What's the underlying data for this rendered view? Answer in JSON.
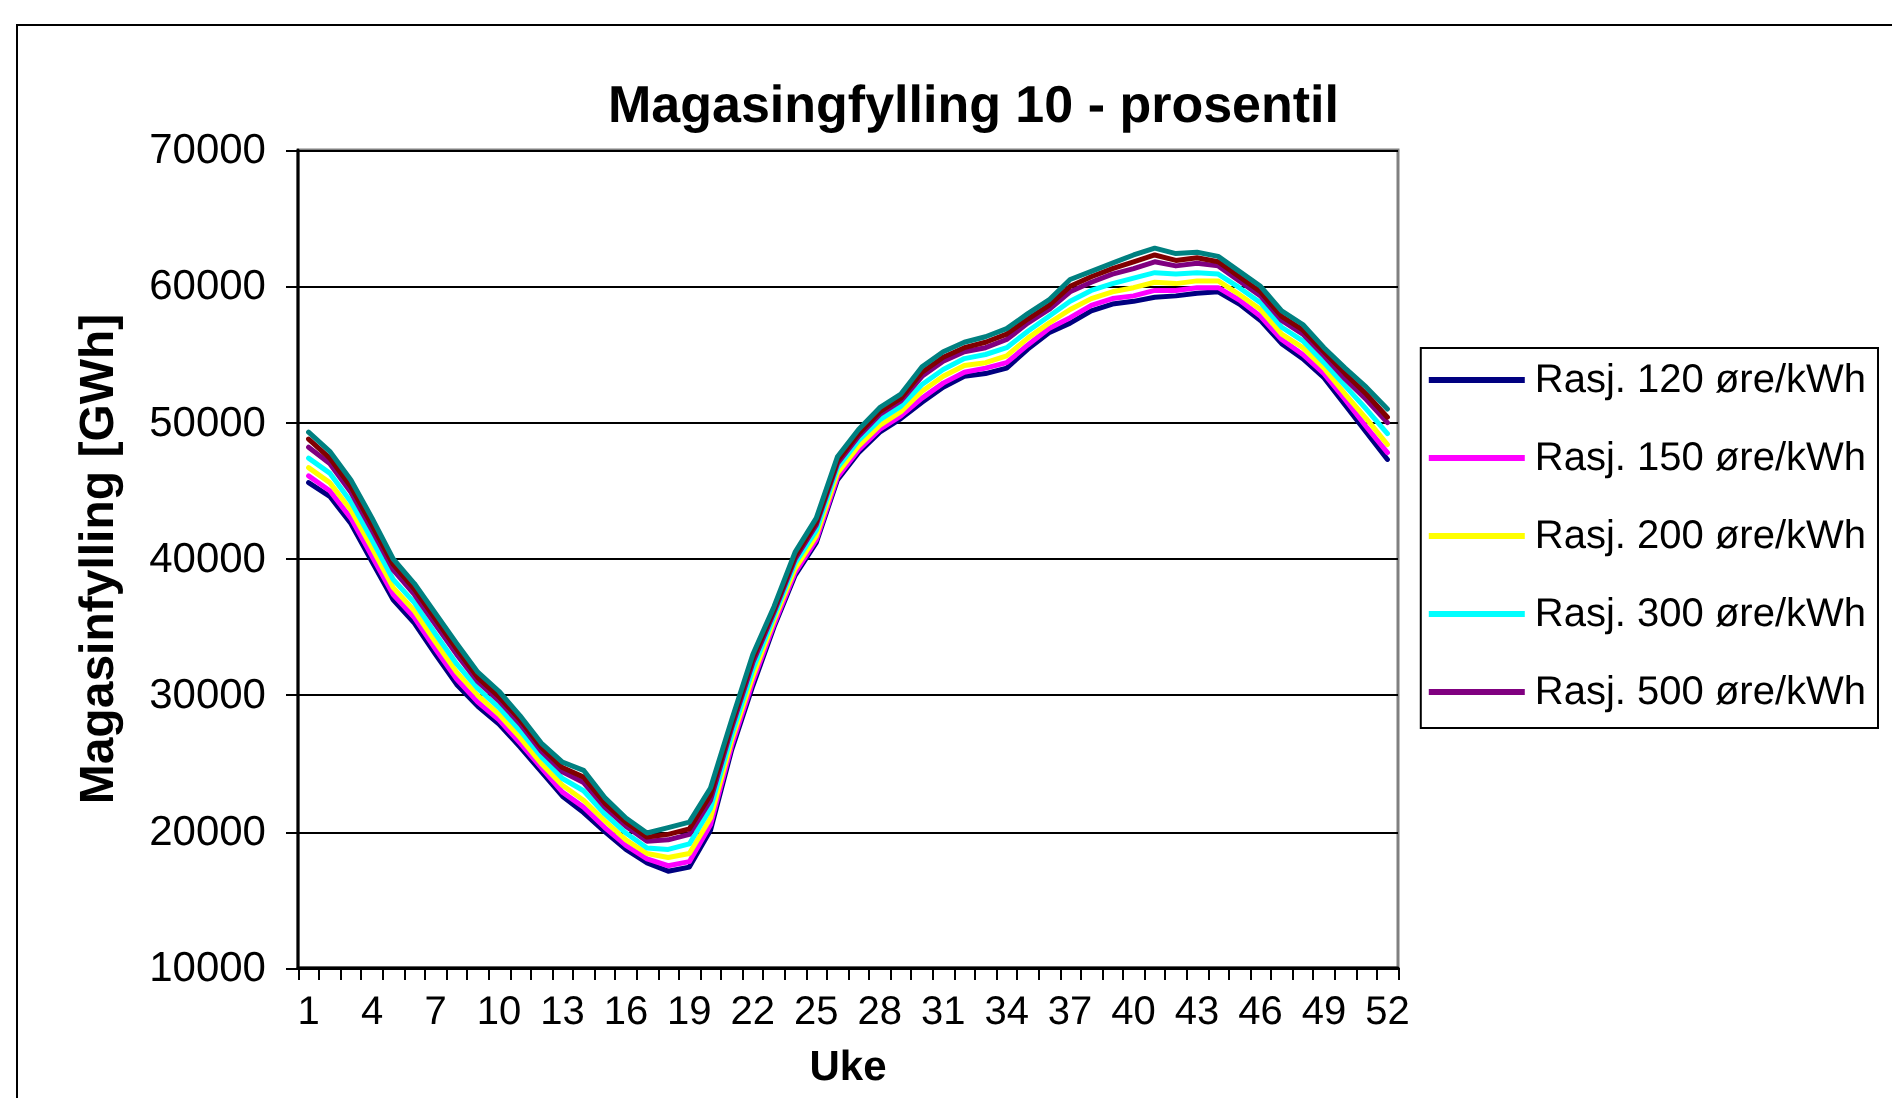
{
  "chart_data": {
    "type": "line",
    "title": "Magasingfylling 10 - prosentil",
    "xlabel": "Uke",
    "ylabel": "Magasinfylling [GWh]",
    "categories": [
      "1",
      null,
      null,
      "4",
      null,
      null,
      "7",
      null,
      null,
      "10",
      null,
      null,
      "13",
      null,
      null,
      "16",
      null,
      null,
      "19",
      null,
      null,
      "22",
      null,
      null,
      "25",
      null,
      null,
      "28",
      null,
      null,
      "31",
      null,
      null,
      "34",
      null,
      null,
      "37",
      null,
      null,
      "40",
      null,
      null,
      "43",
      null,
      null,
      "46",
      null,
      null,
      "49",
      null,
      null,
      "52"
    ],
    "series": [
      {
        "name": "Rasj. 120 øre/kWh",
        "color": "#000080",
        "values": [
          45600,
          44600,
          42600,
          39800,
          37000,
          35300,
          33000,
          30800,
          29200,
          27900,
          26200,
          24400,
          22600,
          21400,
          20000,
          18700,
          17700,
          17100,
          17400,
          20100,
          26000,
          30700,
          35000,
          38800,
          41200,
          45800,
          47800,
          49300,
          50300,
          51500,
          52600,
          53400,
          53600,
          54000,
          55400,
          56600,
          57300,
          58200,
          58700,
          58900,
          59200,
          59300,
          59500,
          59600,
          58700,
          57500,
          55800,
          54700,
          53300,
          51300,
          49300,
          47300
        ]
      },
      {
        "name": "Rasj. 150 øre/kWh",
        "color": "#ff00ff",
        "values": [
          46100,
          45000,
          43000,
          40200,
          37400,
          35700,
          33400,
          31200,
          29500,
          28200,
          26500,
          24700,
          22900,
          21800,
          20300,
          19000,
          18000,
          17500,
          17800,
          20500,
          26300,
          31000,
          35200,
          39000,
          41400,
          46000,
          48000,
          49500,
          50500,
          51800,
          52900,
          53700,
          54000,
          54400,
          55700,
          56900,
          57700,
          58600,
          59100,
          59300,
          59700,
          59700,
          59900,
          59900,
          59000,
          57800,
          56100,
          55000,
          53600,
          51700,
          49700,
          47800
        ]
      },
      {
        "name": "Rasj. 200 øre/kWh",
        "color": "#ffff00",
        "values": [
          46700,
          45600,
          43600,
          40800,
          37900,
          36200,
          33900,
          31700,
          30000,
          28600,
          26900,
          25000,
          23400,
          22300,
          20800,
          19400,
          18400,
          18100,
          18400,
          21000,
          26700,
          31400,
          35500,
          39300,
          41700,
          46300,
          48300,
          49800,
          50800,
          52300,
          53400,
          54200,
          54400,
          54900,
          56200,
          57300,
          58300,
          59100,
          59600,
          59900,
          60300,
          60200,
          60400,
          60400,
          59400,
          58300,
          56500,
          55500,
          54000,
          52100,
          50300,
          48400
        ]
      },
      {
        "name": "Rasj. 300 øre/kWh",
        "color": "#00ffff",
        "values": [
          47400,
          46300,
          44200,
          41400,
          38500,
          36800,
          34500,
          32300,
          30500,
          29100,
          27400,
          25500,
          23900,
          23000,
          21300,
          19900,
          18800,
          18700,
          19100,
          21700,
          27100,
          31900,
          35800,
          39700,
          42100,
          46700,
          48700,
          50200,
          51200,
          52800,
          53900,
          54700,
          55000,
          55500,
          56700,
          57800,
          58900,
          59700,
          60200,
          60600,
          61000,
          60900,
          61000,
          60900,
          59900,
          58800,
          57000,
          56000,
          54400,
          52700,
          51000,
          49200
        ]
      },
      {
        "name": "Rasj. 500 øre/kWh",
        "color": "#800080",
        "values": [
          48200,
          47000,
          44900,
          42100,
          39200,
          37400,
          35200,
          33000,
          31000,
          29600,
          27900,
          25900,
          24400,
          23600,
          21800,
          20400,
          19300,
          19400,
          19800,
          22300,
          27600,
          32400,
          36100,
          40000,
          42500,
          47000,
          49000,
          50600,
          51600,
          53400,
          54500,
          55200,
          55500,
          56100,
          57300,
          58300,
          59600,
          60300,
          60900,
          61300,
          61800,
          61500,
          61700,
          61500,
          60400,
          59300,
          57500,
          56500,
          54900,
          53200,
          51700,
          50000
        ]
      },
      {
        "color": "#800000",
        "values": [
          48800,
          47400,
          45300,
          42500,
          39600,
          37800,
          35600,
          33400,
          31300,
          29900,
          28200,
          26200,
          24700,
          24000,
          22100,
          20700,
          19600,
          19800,
          20200,
          22700,
          27900,
          32700,
          36300,
          40200,
          42700,
          47200,
          49200,
          50800,
          51800,
          53700,
          54800,
          55500,
          55900,
          56500,
          57600,
          58600,
          60000,
          60700,
          61300,
          61800,
          62300,
          61900,
          62100,
          61800,
          60700,
          59600,
          57800,
          56800,
          55200,
          53600,
          52100,
          50400
        ]
      },
      {
        "color": "#008080",
        "values": [
          49300,
          47900,
          45800,
          43000,
          40000,
          38200,
          36000,
          33800,
          31700,
          30300,
          28500,
          26500,
          25100,
          24500,
          22500,
          21000,
          19900,
          20300,
          20700,
          23200,
          28200,
          33000,
          36500,
          40500,
          43000,
          47500,
          49500,
          51100,
          52100,
          54100,
          55200,
          55900,
          56300,
          56900,
          58000,
          59000,
          60500,
          61100,
          61700,
          62300,
          62800,
          62400,
          62500,
          62200,
          61100,
          60000,
          58200,
          57200,
          55500,
          54000,
          52600,
          51000
        ]
      }
    ],
    "ylim": [
      10000,
      70000
    ],
    "yticks": [
      10000,
      20000,
      30000,
      40000,
      50000,
      60000,
      70000
    ],
    "grid": "y",
    "legend": "right"
  }
}
